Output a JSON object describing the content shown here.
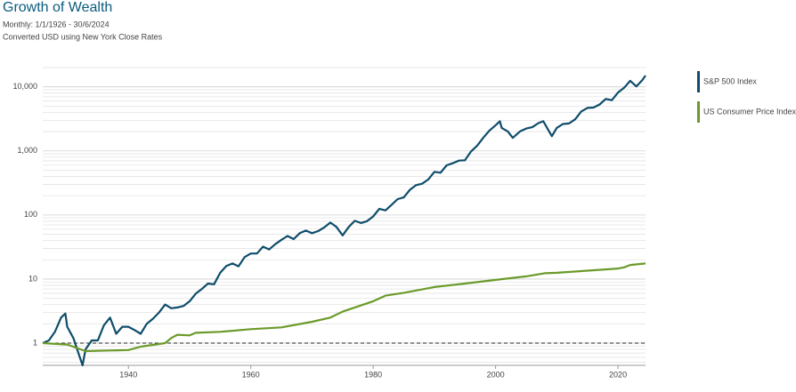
{
  "chart_data": {
    "type": "line",
    "title": "Growth of Wealth",
    "subtitle": "Monthly: 1/1/1926 - 30/6/2024",
    "note": "Converted USD using New York Close Rates",
    "log_scale": true,
    "grid": true,
    "legend": "right",
    "reference_line": 1,
    "xlim": [
      1926,
      2024.5
    ],
    "xticks": [
      1940,
      1960,
      1980,
      2000,
      2020
    ],
    "ylim": [
      0.45,
      20000
    ],
    "yticks": [
      1,
      10,
      100,
      {
        "value": 1000,
        "label": "1,000"
      },
      {
        "value": 10000,
        "label": "10,000"
      }
    ],
    "minor_yticks": [
      0.5,
      0.6,
      0.7,
      0.8,
      0.9,
      2,
      3,
      4,
      5,
      6,
      7,
      8,
      9,
      20,
      30,
      40,
      50,
      60,
      70,
      80,
      90,
      200,
      300,
      400,
      500,
      600,
      700,
      800,
      900,
      2000,
      3000,
      4000,
      5000,
      6000,
      7000,
      8000,
      9000,
      20000
    ],
    "series": [
      {
        "name": "S&P 500 Index",
        "color": "#0e4d6b",
        "x": [
          1926,
          1927,
          1928,
          1929,
          1929.7,
          1930,
          1931,
          1932.5,
          1933,
          1934,
          1935,
          1936,
          1937,
          1938,
          1939,
          1940,
          1941,
          1942,
          1943,
          1944,
          1945,
          1946,
          1947,
          1948,
          1949,
          1950,
          1951,
          1952,
          1953,
          1954,
          1955,
          1956,
          1957,
          1958,
          1959,
          1960,
          1961,
          1962,
          1963,
          1964,
          1965,
          1966,
          1967,
          1968,
          1969,
          1970,
          1971,
          1972,
          1973,
          1974,
          1975,
          1976,
          1977,
          1978,
          1979,
          1980,
          1981,
          1982,
          1983,
          1984,
          1985,
          1986,
          1987,
          1988,
          1989,
          1990,
          1991,
          1992,
          1993,
          1994,
          1995,
          1996,
          1997,
          1998,
          1999,
          2000,
          2000.7,
          2001,
          2002,
          2002.8,
          2004,
          2005,
          2006,
          2007,
          2007.8,
          2009.2,
          2010,
          2011,
          2012,
          2013,
          2014,
          2015,
          2016,
          2017,
          2018,
          2019,
          2020,
          2021,
          2022,
          2023,
          2024,
          2024.5
        ],
        "values": [
          1,
          1.1,
          1.5,
          2.5,
          2.9,
          1.8,
          1.2,
          0.45,
          0.8,
          1.1,
          1.1,
          1.9,
          2.5,
          1.4,
          1.8,
          1.8,
          1.6,
          1.4,
          2.0,
          2.4,
          3.0,
          4.0,
          3.5,
          3.6,
          3.8,
          4.5,
          5.9,
          7,
          8.5,
          8.3,
          12.5,
          16,
          17.5,
          15.8,
          22,
          25,
          25,
          32,
          29,
          35,
          41,
          47,
          42,
          52,
          57,
          52,
          56,
          64,
          76,
          65,
          48,
          65,
          81,
          75,
          80,
          95,
          125,
          118,
          144,
          177,
          188,
          247,
          292,
          307,
          358,
          471,
          457,
          596,
          642,
          706,
          715,
          984,
          1210,
          1614,
          2075,
          2512,
          2900,
          2283,
          2012,
          1600,
          2017,
          2237,
          2347,
          2717,
          2900,
          1700,
          2284,
          2628,
          2684,
          3113,
          4122,
          4686,
          4750,
          5320,
          6480,
          6196,
          8148,
          9647,
          12417,
          10167,
          12839,
          15000
        ]
      },
      {
        "name": "US Consumer Price Index",
        "color": "#6b9a2a",
        "x": [
          1926,
          1930,
          1933,
          1940,
          1942,
          1946,
          1947,
          1948,
          1950,
          1951,
          1955,
          1960,
          1965,
          1970,
          1973,
          1975,
          1980,
          1982,
          1985,
          1990,
          1995,
          2000,
          2005,
          2008,
          2010,
          2015,
          2020,
          2021,
          2022,
          2024.5
        ],
        "values": [
          1,
          0.95,
          0.75,
          0.78,
          0.88,
          1.0,
          1.2,
          1.35,
          1.32,
          1.45,
          1.5,
          1.65,
          1.76,
          2.15,
          2.5,
          3.1,
          4.5,
          5.5,
          6.1,
          7.5,
          8.5,
          9.7,
          11,
          12.3,
          12.5,
          13.5,
          14.6,
          15.2,
          16.6,
          17.5
        ]
      }
    ]
  }
}
